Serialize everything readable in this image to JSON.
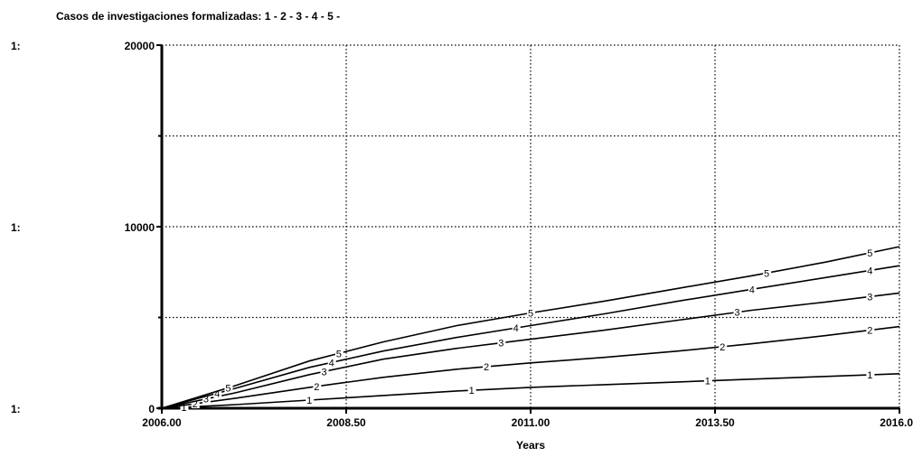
{
  "chart_data": {
    "type": "line",
    "title": "Casos de investigaciones  formalizadas: 1 - 2 - 3 - 4 - 5 -",
    "xlabel": "Years",
    "ylabel": "",
    "xlim": [
      2006.0,
      2016.0
    ],
    "ylim": [
      0,
      20000
    ],
    "x_ticks": [
      "2006.00",
      "2008.50",
      "2011.00",
      "2013.50",
      "2016.00"
    ],
    "y_ticks": [
      "0",
      "10000",
      "20000"
    ],
    "y_row_labels": [
      "1:",
      "1:",
      "1:"
    ],
    "grid": true,
    "x": [
      2006.0,
      2007.0,
      2008.0,
      2009.0,
      2010.0,
      2011.0,
      2012.0,
      2013.0,
      2014.0,
      2015.0,
      2016.0
    ],
    "series": [
      {
        "name": "1",
        "values": [
          0,
          200,
          450,
          700,
          950,
          1150,
          1300,
          1450,
          1600,
          1750,
          1900
        ]
      },
      {
        "name": "2",
        "values": [
          0,
          550,
          1150,
          1700,
          2150,
          2500,
          2800,
          3150,
          3550,
          4000,
          4500
        ]
      },
      {
        "name": "3",
        "values": [
          0,
          850,
          1850,
          2700,
          3300,
          3800,
          4300,
          4850,
          5400,
          5850,
          6350
        ]
      },
      {
        "name": "4",
        "values": [
          0,
          1100,
          2250,
          3150,
          3900,
          4550,
          5200,
          5900,
          6550,
          7200,
          7850
        ]
      },
      {
        "name": "5",
        "values": [
          0,
          1250,
          2600,
          3650,
          4550,
          5250,
          5900,
          6600,
          7300,
          8050,
          8900
        ]
      }
    ]
  }
}
